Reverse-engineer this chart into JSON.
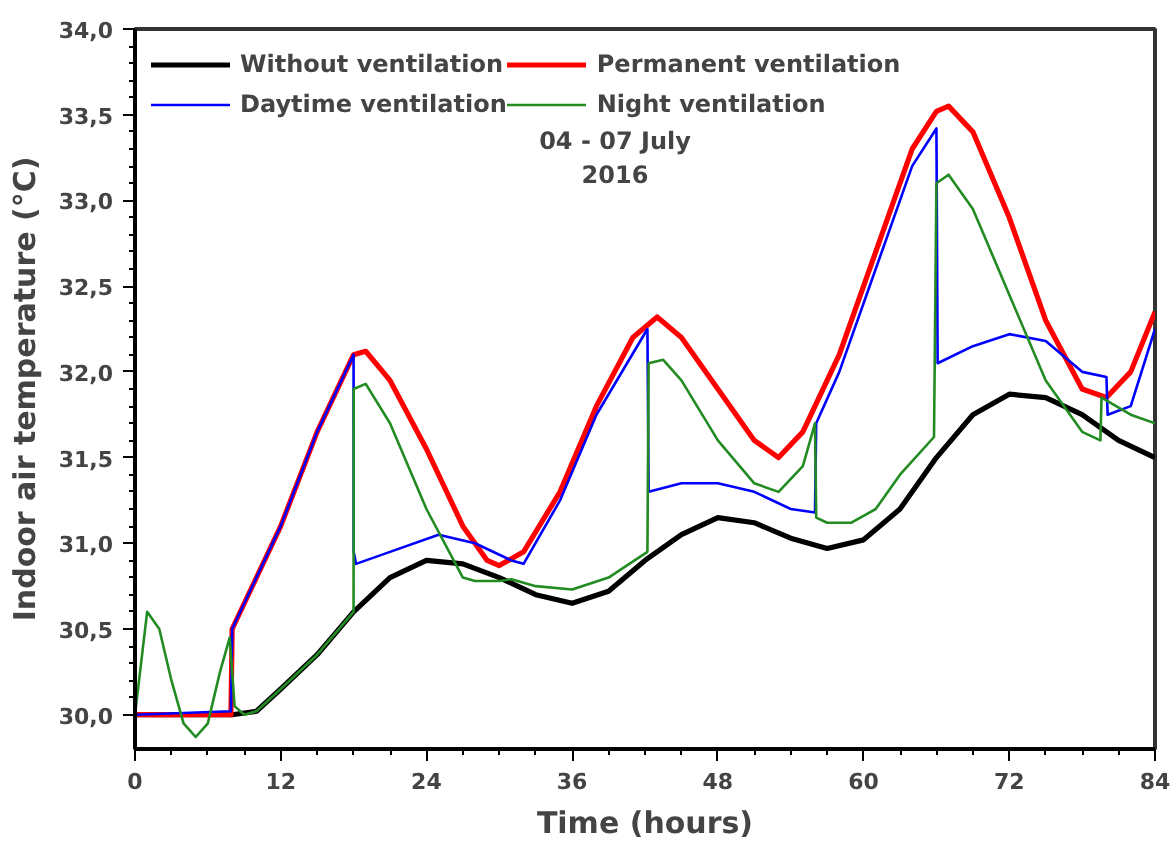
{
  "chart_data": {
    "type": "line",
    "xlabel": "Time (hours)",
    "ylabel": "Indoor air temperature (°C)",
    "annotations": [
      "04 - 07 July\n2016"
    ],
    "xlim": [
      0,
      84
    ],
    "xticks": [
      0,
      12,
      24,
      36,
      48,
      60,
      72,
      84
    ],
    "ylim": [
      29.8,
      34.0
    ],
    "yticks": [
      {
        "value": 30.0,
        "label": "30,0"
      },
      {
        "value": 30.5,
        "label": "30,5"
      },
      {
        "value": 31.0,
        "label": "31,0"
      },
      {
        "value": 31.5,
        "label": "31,5"
      },
      {
        "value": 32.0,
        "label": "32,0"
      },
      {
        "value": 32.5,
        "label": "32,5"
      },
      {
        "value": 33.0,
        "label": "33,0"
      },
      {
        "value": 33.5,
        "label": "33,5"
      },
      {
        "value": 34.0,
        "label": "34,0"
      }
    ],
    "grid": false,
    "legend": "top left",
    "marker": "none",
    "line_style": "solid",
    "series": [
      {
        "name": "Without ventilation",
        "color": "#000000",
        "x": [
          0,
          8,
          10,
          12,
          15,
          18,
          21,
          24,
          27,
          30,
          33,
          36,
          39,
          42,
          45,
          48,
          51,
          54,
          57,
          60,
          63,
          66,
          69,
          72,
          75,
          78,
          81,
          84
        ],
        "values": [
          30.0,
          30.0,
          30.02,
          30.15,
          30.35,
          30.6,
          30.8,
          30.9,
          30.88,
          30.8,
          30.7,
          30.65,
          30.72,
          30.9,
          31.05,
          31.15,
          31.12,
          31.03,
          30.97,
          31.02,
          31.2,
          31.5,
          31.75,
          31.87,
          31.85,
          31.75,
          31.6,
          31.5
        ]
      },
      {
        "name": "Permanent ventilation",
        "color": "#ff0000",
        "x": [
          0,
          7.9,
          8,
          12,
          15,
          18,
          19,
          21,
          24,
          27,
          29,
          30,
          32,
          35,
          38,
          41,
          43,
          45,
          48,
          51,
          53,
          55,
          58,
          61,
          64,
          66,
          67,
          69,
          72,
          75,
          78,
          80,
          82,
          84
        ],
        "values": [
          30.0,
          30.0,
          30.5,
          31.1,
          31.65,
          32.1,
          32.12,
          31.95,
          31.55,
          31.1,
          30.9,
          30.87,
          30.95,
          31.3,
          31.8,
          32.2,
          32.32,
          32.2,
          31.9,
          31.6,
          31.5,
          31.65,
          32.1,
          32.7,
          33.3,
          33.52,
          33.55,
          33.4,
          32.9,
          32.3,
          31.9,
          31.85,
          32.0,
          32.35
        ]
      },
      {
        "name": "Daytime ventilation",
        "color": "#0000ff",
        "x": [
          0,
          7.9,
          8,
          12,
          15,
          18,
          18.01,
          18.2,
          21,
          25,
          28,
          31,
          32,
          35,
          38,
          42.2,
          42.3,
          45,
          48,
          51,
          54,
          56,
          56.1,
          58,
          61,
          64,
          66,
          66.1,
          69,
          72,
          75,
          78,
          80,
          80.1,
          82,
          84
        ],
        "values": [
          30.0,
          30.02,
          30.5,
          31.1,
          31.65,
          32.1,
          30.95,
          30.88,
          30.95,
          31.05,
          31.0,
          30.9,
          30.88,
          31.25,
          31.75,
          32.25,
          31.3,
          31.35,
          31.35,
          31.3,
          31.2,
          31.18,
          31.7,
          32.0,
          32.6,
          33.2,
          33.42,
          32.05,
          32.15,
          32.22,
          32.18,
          32.0,
          31.97,
          31.75,
          31.8,
          32.25
        ]
      },
      {
        "name": "Night ventilation",
        "color": "#228b22",
        "x": [
          0,
          1,
          2,
          3,
          4,
          5,
          6,
          7,
          7.8,
          8.2,
          9,
          10,
          12,
          15,
          18,
          18.01,
          19,
          21,
          24,
          27,
          28,
          30,
          31,
          33,
          36,
          39,
          42.2,
          42.3,
          43.5,
          45,
          48,
          51,
          53,
          55,
          56,
          56.1,
          57,
          59,
          61,
          63,
          65.8,
          66,
          67,
          69,
          72,
          75,
          78,
          79.5,
          79.6,
          82,
          84
        ],
        "values": [
          30.0,
          30.6,
          30.5,
          30.2,
          29.95,
          29.87,
          29.95,
          30.25,
          30.45,
          30.05,
          30.0,
          30.02,
          30.15,
          30.35,
          30.6,
          31.9,
          31.93,
          31.7,
          31.2,
          30.8,
          30.78,
          30.78,
          30.79,
          30.75,
          30.73,
          30.8,
          30.95,
          32.05,
          32.07,
          31.95,
          31.6,
          31.35,
          31.3,
          31.45,
          31.7,
          31.15,
          31.12,
          31.12,
          31.2,
          31.4,
          31.62,
          33.1,
          33.15,
          32.95,
          32.45,
          31.95,
          31.65,
          31.6,
          31.85,
          31.75,
          31.7
        ]
      }
    ]
  }
}
